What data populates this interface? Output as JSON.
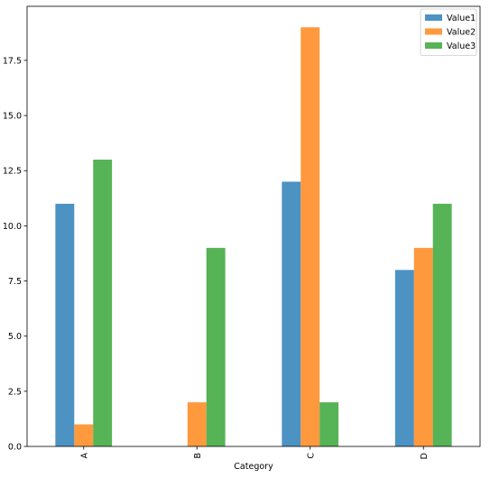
{
  "chart_data": {
    "type": "bar",
    "title": "",
    "xlabel": "Category",
    "ylabel": "",
    "categories": [
      "A",
      "B",
      "C",
      "D"
    ],
    "series": [
      {
        "name": "Value1",
        "values": [
          11,
          0,
          12,
          8
        ],
        "color": "#1f77b4"
      },
      {
        "name": "Value2",
        "values": [
          1,
          2,
          19,
          9
        ],
        "color": "#ff7f0e"
      },
      {
        "name": "Value3",
        "values": [
          13,
          9,
          2,
          11
        ],
        "color": "#2ca02c"
      }
    ],
    "ylim": [
      0,
      19.95
    ],
    "yticks": [
      0.0,
      2.5,
      5.0,
      7.5,
      10.0,
      12.5,
      15.0,
      17.5
    ],
    "ytick_labels": [
      "0.0",
      "2.5",
      "5.0",
      "7.5",
      "10.0",
      "12.5",
      "15.0",
      "17.5"
    ],
    "bar_opacity": 0.8,
    "grid": false,
    "legend_position": "top-right",
    "xtick_rotation": "vertical"
  }
}
